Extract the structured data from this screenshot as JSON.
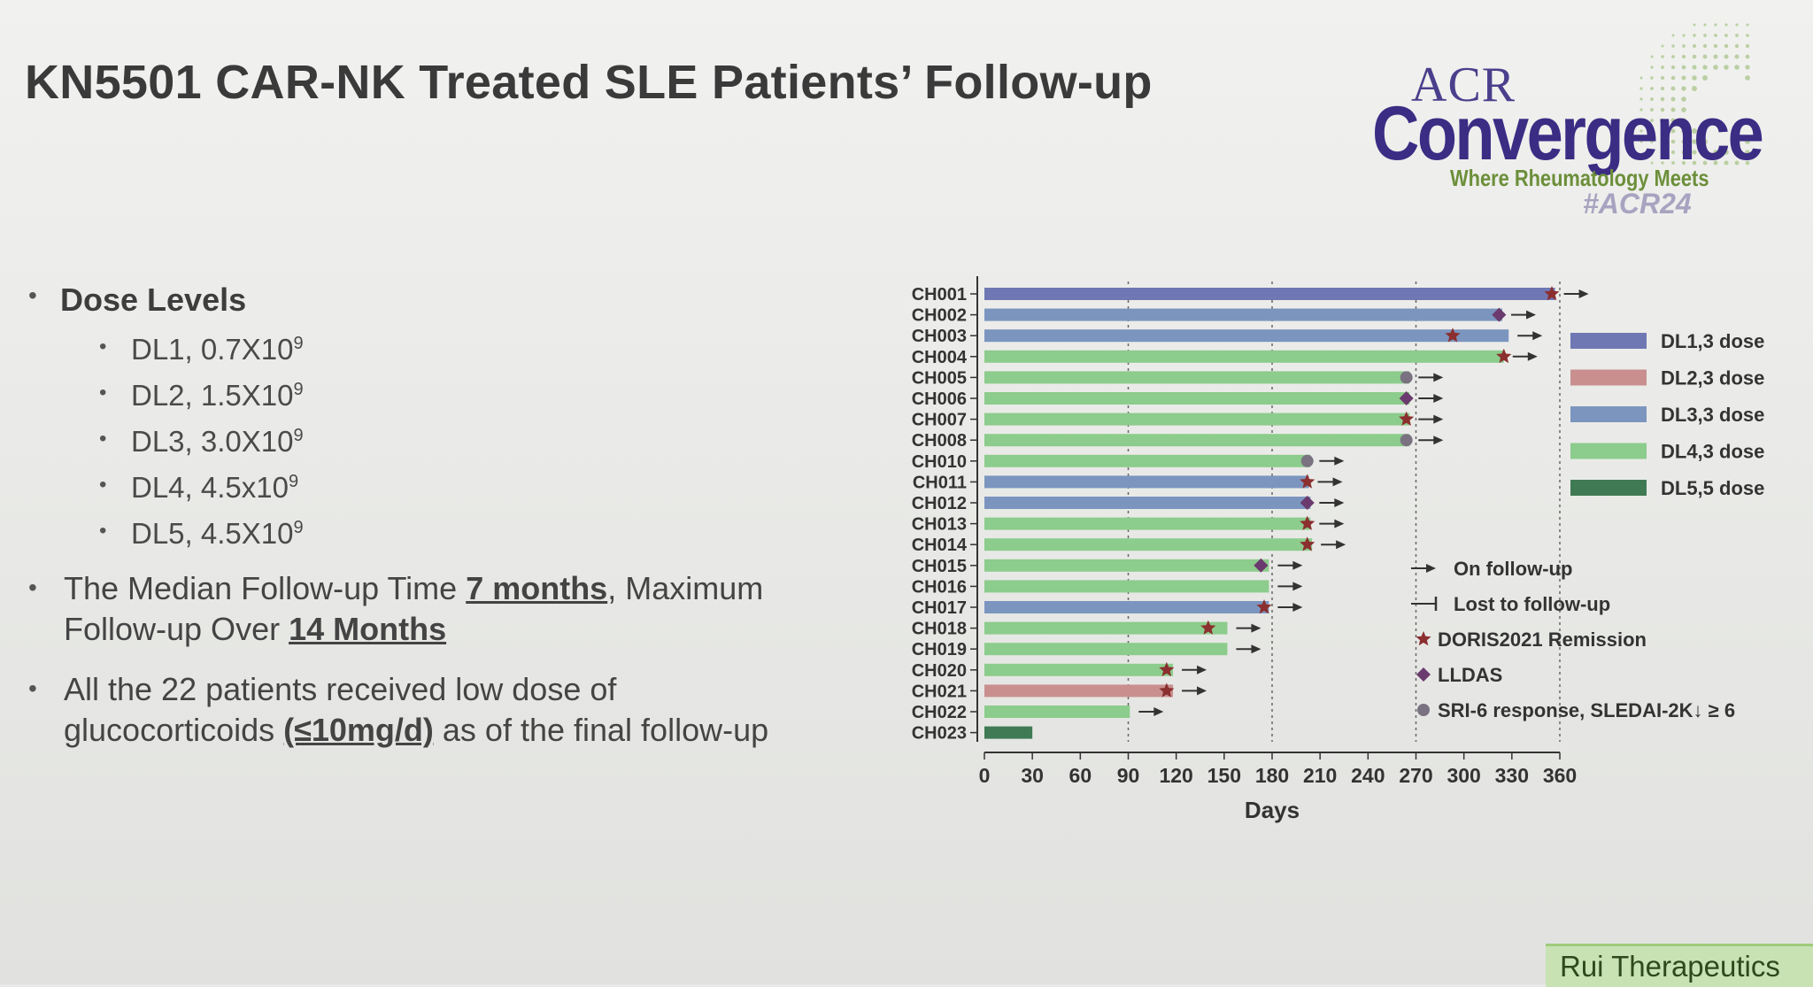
{
  "title": "KN5501 CAR-NK Treated SLE Patients’ Follow-up",
  "logo": {
    "acr": "ACR",
    "convergence": "Convergence",
    "tagline": "Where Rheumatology Meets",
    "hashtag": "#ACR24"
  },
  "bullets": {
    "dose_levels": "Dose Levels",
    "doses": [
      {
        "label": "DL1, 0.7X10",
        "exp": "9"
      },
      {
        "label": "DL2, 1.5X10",
        "exp": "9"
      },
      {
        "label": "DL3, 3.0X10",
        "exp": "9"
      },
      {
        "label": "DL4, 4.5x10",
        "exp": "9"
      },
      {
        "label": "DL5, 4.5X10",
        "exp": "9"
      }
    ],
    "median_a": "The Median Follow-up Time ",
    "median_b": "7 months",
    "median_c": ", Maximum",
    "median_d": "Follow-up Over ",
    "median_e": "14 Months",
    "gc_a": "All the 22 patients received low dose of",
    "gc_b": "glucocorticoids ",
    "gc_c": "(≤10mg/d)",
    "gc_d": " as of the final follow-up"
  },
  "footer": "Rui Therapeutics",
  "chart_data": {
    "type": "bar",
    "orientation": "horizontal",
    "xlabel": "Days",
    "xlim": [
      0,
      360
    ],
    "xticks": [
      0,
      30,
      60,
      90,
      120,
      150,
      180,
      210,
      240,
      270,
      300,
      330,
      360
    ],
    "reference_lines": [
      90,
      180,
      270,
      360
    ],
    "categories": [
      "CH001",
      "CH002",
      "CH003",
      "CH004",
      "CH005",
      "CH006",
      "CH007",
      "CH008",
      "CH010",
      "CH011",
      "CH012",
      "CH013",
      "CH014",
      "CH015",
      "CH016",
      "CH017",
      "CH018",
      "CH019",
      "CH020",
      "CH021",
      "CH022",
      "CH023"
    ],
    "values": [
      357,
      324,
      328,
      325,
      266,
      266,
      266,
      266,
      204,
      203,
      204,
      204,
      205,
      178,
      178,
      178,
      152,
      152,
      118,
      118,
      91,
      30
    ],
    "group": [
      "DL1",
      "DL3",
      "DL3",
      "DL4",
      "DL4",
      "DL4",
      "DL4",
      "DL4",
      "DL4",
      "DL3",
      "DL3",
      "DL4",
      "DL4",
      "DL4",
      "DL4",
      "DL3",
      "DL4",
      "DL4",
      "DL4",
      "DL2",
      "DL4",
      "DL5"
    ],
    "status": [
      "on",
      "on",
      "on",
      "on",
      "on",
      "on",
      "on",
      "on",
      "on",
      "on",
      "on",
      "on",
      "on",
      "on",
      "on",
      "on",
      "on",
      "on",
      "on",
      "on",
      "on",
      "lost"
    ],
    "markers": [
      {
        "patient": "CH001",
        "type": "star",
        "day": 355
      },
      {
        "patient": "CH002",
        "type": "diamond",
        "day": 322
      },
      {
        "patient": "CH003",
        "type": "star",
        "day": 293
      },
      {
        "patient": "CH004",
        "type": "star",
        "day": 325
      },
      {
        "patient": "CH005",
        "type": "circle",
        "day": 264
      },
      {
        "patient": "CH006",
        "type": "diamond",
        "day": 264
      },
      {
        "patient": "CH007",
        "type": "star",
        "day": 264
      },
      {
        "patient": "CH008",
        "type": "circle",
        "day": 264
      },
      {
        "patient": "CH010",
        "type": "circle",
        "day": 202
      },
      {
        "patient": "CH011",
        "type": "star",
        "day": 202
      },
      {
        "patient": "CH012",
        "type": "diamond",
        "day": 202
      },
      {
        "patient": "CH013",
        "type": "star",
        "day": 202
      },
      {
        "patient": "CH014",
        "type": "star",
        "day": 202
      },
      {
        "patient": "CH015",
        "type": "diamond",
        "day": 173
      },
      {
        "patient": "CH017",
        "type": "star",
        "day": 175
      },
      {
        "patient": "CH018",
        "type": "star",
        "day": 140
      },
      {
        "patient": "CH020",
        "type": "star",
        "day": 114
      },
      {
        "patient": "CH021",
        "type": "star",
        "day": 114
      }
    ],
    "legend_dose": [
      {
        "key": "DL1",
        "label": "DL1,3 dose",
        "color": "#6f78b3"
      },
      {
        "key": "DL2",
        "label": "DL2,3 dose",
        "color": "#c98f8f"
      },
      {
        "key": "DL3",
        "label": "DL3,3 dose",
        "color": "#7b95bf"
      },
      {
        "key": "DL4",
        "label": "DL4,3 dose",
        "color": "#8ccc8c"
      },
      {
        "key": "DL5",
        "label": "DL5,5 dose",
        "color": "#3f7a54"
      }
    ],
    "legend_symbols": [
      {
        "type": "arrow",
        "label": "On follow-up"
      },
      {
        "type": "lost",
        "label": "Lost to follow-up"
      },
      {
        "type": "star",
        "label": "DORIS2021 Remission",
        "color": "#8b2f2f"
      },
      {
        "type": "diamond",
        "label": "LLDAS",
        "color": "#6b3a6e"
      },
      {
        "type": "circle",
        "label": "SRI-6 response, SLEDAI-2K↓ ≥ 6",
        "color": "#7a7280"
      }
    ]
  }
}
